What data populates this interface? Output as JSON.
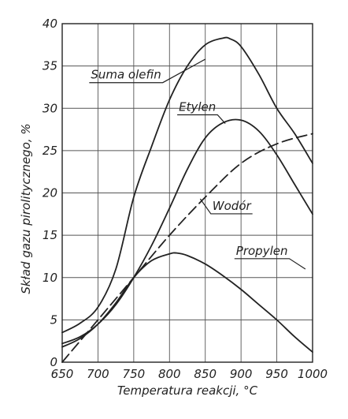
{
  "chart_data": {
    "type": "line",
    "xlabel": "Temperatura reakcji, °C",
    "ylabel": "Skład gazu pirolitycznego, %",
    "xlim": [
      650,
      1000
    ],
    "ylim": [
      0,
      40
    ],
    "x_ticks": [
      650,
      700,
      750,
      800,
      850,
      900,
      950,
      1000
    ],
    "y_ticks": [
      0,
      5,
      10,
      15,
      20,
      25,
      30,
      35,
      40
    ],
    "grid": true,
    "series": [
      {
        "name": "Suma olefin",
        "style": "solid",
        "x": [
          650,
          675,
          700,
          725,
          750,
          775,
          800,
          825,
          850,
          875,
          885,
          900,
          925,
          950,
          975,
          1000
        ],
        "y": [
          3.5,
          4.6,
          6.5,
          11.0,
          19.5,
          25.5,
          31.0,
          35.0,
          37.5,
          38.3,
          38.2,
          37.3,
          34.0,
          30.0,
          27.0,
          23.5
        ]
      },
      {
        "name": "Etylen",
        "style": "solid",
        "x": [
          650,
          675,
          700,
          725,
          750,
          775,
          800,
          825,
          850,
          875,
          900,
          925,
          950,
          975,
          1000
        ],
        "y": [
          2.2,
          3.0,
          4.5,
          6.8,
          10.0,
          13.8,
          18.2,
          22.8,
          26.5,
          28.3,
          28.6,
          27.3,
          24.5,
          21.0,
          17.5
        ]
      },
      {
        "name": "Wodór",
        "style": "dashed",
        "x": [
          650,
          700,
          750,
          800,
          850,
          900,
          950,
          1000
        ],
        "y": [
          0.0,
          5.0,
          10.0,
          15.0,
          19.5,
          23.5,
          25.8,
          27.0
        ]
      },
      {
        "name": "Propylen",
        "style": "solid",
        "x": [
          650,
          675,
          700,
          725,
          750,
          775,
          800,
          810,
          825,
          850,
          875,
          900,
          925,
          950,
          975,
          1000
        ],
        "y": [
          1.8,
          2.8,
          4.5,
          7.0,
          10.0,
          12.0,
          12.8,
          12.9,
          12.6,
          11.6,
          10.2,
          8.6,
          6.8,
          5.0,
          3.0,
          1.2
        ]
      }
    ],
    "labels": [
      {
        "series": "Suma olefin",
        "text": "Suma olefin",
        "text_x": 690,
        "text_y": 33.5,
        "leader_to_x": 850,
        "leader_to_y": 35.8
      },
      {
        "series": "Etylen",
        "text": "Etylen",
        "text_x": 813,
        "text_y": 29.7,
        "leader_to_x": 878,
        "leader_to_y": 28.2
      },
      {
        "series": "Wodór",
        "text": "Wodór",
        "text_x": 860,
        "text_y": 18.0,
        "leader_to_x": 843,
        "leader_to_y": 19.3
      },
      {
        "series": "Propylen",
        "text": "Propylen",
        "text_x": 893,
        "text_y": 12.7,
        "leader_to_x": 990,
        "leader_to_y": 11.0
      }
    ]
  }
}
